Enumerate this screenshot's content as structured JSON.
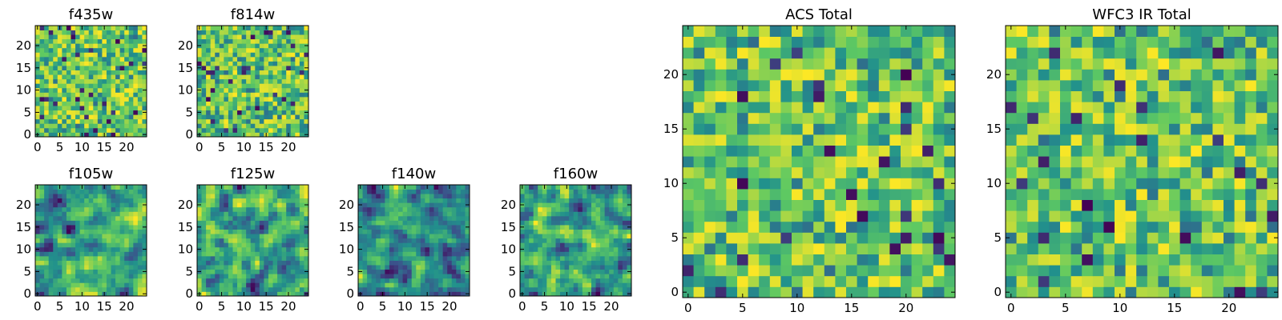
{
  "figure": {
    "colormap": [
      "#440154",
      "#3b528b",
      "#21918c",
      "#5ec962",
      "#fde725"
    ]
  },
  "chart_data": [
    {
      "type": "heatmap",
      "title": "f435w",
      "grid_size": 25,
      "xticks": [
        0,
        5,
        10,
        15,
        20
      ],
      "xtick_labels": [
        "0",
        "5",
        "10",
        "15",
        "20"
      ],
      "yticks": [
        0,
        5,
        10,
        15,
        20
      ],
      "ytick_labels": [
        "0",
        "5",
        "10",
        "15",
        "20"
      ],
      "xlim": [
        -0.5,
        24.5
      ],
      "ylim": [
        -0.5,
        24.5
      ],
      "seed": 11,
      "smooth": 0
    },
    {
      "type": "heatmap",
      "title": "f814w",
      "grid_size": 25,
      "xticks": [
        0,
        5,
        10,
        15,
        20
      ],
      "xtick_labels": [
        "0",
        "5",
        "10",
        "15",
        "20"
      ],
      "yticks": [
        0,
        5,
        10,
        15,
        20
      ],
      "ytick_labels": [
        "0",
        "5",
        "10",
        "15",
        "20"
      ],
      "xlim": [
        -0.5,
        24.5
      ],
      "ylim": [
        -0.5,
        24.5
      ],
      "seed": 23,
      "smooth": 0
    },
    {
      "type": "heatmap",
      "title": "f105w",
      "grid_size": 25,
      "xticks": [
        0,
        5,
        10,
        15,
        20
      ],
      "xtick_labels": [
        "0",
        "5",
        "10",
        "15",
        "20"
      ],
      "yticks": [
        0,
        5,
        10,
        15,
        20
      ],
      "ytick_labels": [
        "0",
        "5",
        "10",
        "15",
        "20"
      ],
      "xlim": [
        -0.5,
        24.5
      ],
      "ylim": [
        -0.5,
        24.5
      ],
      "seed": 37,
      "smooth": 1
    },
    {
      "type": "heatmap",
      "title": "f125w",
      "grid_size": 25,
      "xticks": [
        0,
        5,
        10,
        15,
        20
      ],
      "xtick_labels": [
        "0",
        "5",
        "10",
        "15",
        "20"
      ],
      "yticks": [
        0,
        5,
        10,
        15,
        20
      ],
      "ytick_labels": [
        "0",
        "5",
        "10",
        "15",
        "20"
      ],
      "xlim": [
        -0.5,
        24.5
      ],
      "ylim": [
        -0.5,
        24.5
      ],
      "seed": 41,
      "smooth": 1
    },
    {
      "type": "heatmap",
      "title": "f140w",
      "grid_size": 25,
      "xticks": [
        0,
        5,
        10,
        15,
        20
      ],
      "xtick_labels": [
        "0",
        "5",
        "10",
        "15",
        "20"
      ],
      "yticks": [
        0,
        5,
        10,
        15,
        20
      ],
      "ytick_labels": [
        "0",
        "5",
        "10",
        "15",
        "20"
      ],
      "xlim": [
        -0.5,
        24.5
      ],
      "ylim": [
        -0.5,
        24.5
      ],
      "seed": 53,
      "smooth": 1
    },
    {
      "type": "heatmap",
      "title": "f160w",
      "grid_size": 25,
      "xticks": [
        0,
        5,
        10,
        15,
        20
      ],
      "xtick_labels": [
        "0",
        "5",
        "10",
        "15",
        "20"
      ],
      "yticks": [
        0,
        5,
        10,
        15,
        20
      ],
      "ytick_labels": [
        "0",
        "5",
        "10",
        "15",
        "20"
      ],
      "xlim": [
        -0.5,
        24.5
      ],
      "ylim": [
        -0.5,
        24.5
      ],
      "seed": 67,
      "smooth": 1
    },
    {
      "type": "heatmap",
      "title": "ACS Total",
      "grid_size": 25,
      "xticks": [
        0,
        5,
        10,
        15,
        20
      ],
      "xtick_labels": [
        "0",
        "5",
        "10",
        "15",
        "20"
      ],
      "yticks": [
        0,
        5,
        10,
        15,
        20
      ],
      "ytick_labels": [
        "0",
        "5",
        "10",
        "15",
        "20"
      ],
      "xlim": [
        -0.5,
        24.5
      ],
      "ylim": [
        -0.5,
        24.5
      ],
      "seed": 79,
      "smooth": 0
    },
    {
      "type": "heatmap",
      "title": "WFC3 IR Total",
      "grid_size": 25,
      "xticks": [
        0,
        5,
        10,
        15,
        20
      ],
      "xtick_labels": [
        "0",
        "5",
        "10",
        "15",
        "20"
      ],
      "yticks": [
        0,
        5,
        10,
        15,
        20
      ],
      "ytick_labels": [
        "0",
        "5",
        "10",
        "15",
        "20"
      ],
      "xlim": [
        -0.5,
        24.5
      ],
      "ylim": [
        -0.5,
        24.5
      ],
      "seed": 83,
      "smooth": 0
    }
  ]
}
